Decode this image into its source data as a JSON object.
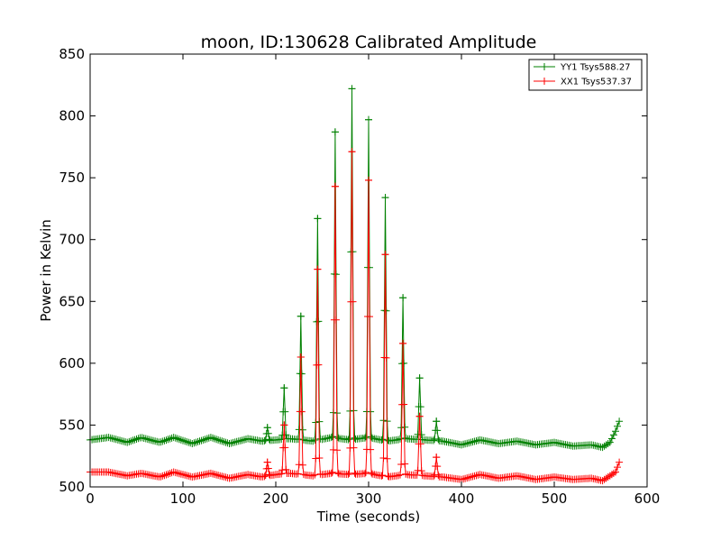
{
  "chart_data": {
    "type": "line",
    "title": "moon, ID:130628 Calibrated Amplitude",
    "xlabel": "Time (seconds)",
    "ylabel": "Power in Kelvin",
    "xlim": [
      0,
      600
    ],
    "ylim": [
      500,
      850
    ],
    "xticks": [
      0,
      100,
      200,
      300,
      400,
      500,
      600
    ],
    "yticks": [
      500,
      550,
      600,
      650,
      700,
      750,
      800,
      850
    ],
    "grid": false,
    "legend_position": "top-right",
    "marker": "plus",
    "baseline_sample_step": 2,
    "series": [
      {
        "name": "YY1 Tsys588.27",
        "color": "#008000",
        "baseline": [
          [
            0,
            538
          ],
          [
            20,
            540
          ],
          [
            40,
            536
          ],
          [
            55,
            540
          ],
          [
            75,
            536
          ],
          [
            90,
            540
          ],
          [
            110,
            535
          ],
          [
            130,
            540
          ],
          [
            150,
            535
          ],
          [
            170,
            539
          ],
          [
            185,
            537
          ],
          [
            200,
            538
          ],
          [
            215,
            539
          ],
          [
            240,
            537
          ],
          [
            260,
            540
          ],
          [
            280,
            538
          ],
          [
            300,
            540
          ],
          [
            320,
            537
          ],
          [
            340,
            539
          ],
          [
            360,
            538
          ],
          [
            380,
            537
          ],
          [
            400,
            534
          ],
          [
            420,
            538
          ],
          [
            440,
            535
          ],
          [
            460,
            537
          ],
          [
            480,
            534
          ],
          [
            500,
            536
          ],
          [
            520,
            533
          ],
          [
            540,
            534
          ],
          [
            552,
            532
          ],
          [
            560,
            536
          ],
          [
            566,
            545
          ],
          [
            570,
            553
          ]
        ],
        "peaks": [
          [
            191,
            548
          ],
          [
            209,
            580
          ],
          [
            227,
            638
          ],
          [
            245,
            717
          ],
          [
            264,
            787
          ],
          [
            282,
            822
          ],
          [
            300,
            797
          ],
          [
            318,
            734
          ],
          [
            337,
            653
          ],
          [
            355,
            588
          ],
          [
            373,
            553
          ]
        ]
      },
      {
        "name": "XX1 Tsys537.37",
        "color": "#ff0000",
        "baseline": [
          [
            0,
            512
          ],
          [
            20,
            512
          ],
          [
            40,
            509
          ],
          [
            55,
            511
          ],
          [
            75,
            508
          ],
          [
            90,
            512
          ],
          [
            110,
            508
          ],
          [
            130,
            511
          ],
          [
            150,
            507
          ],
          [
            170,
            510
          ],
          [
            185,
            508
          ],
          [
            200,
            510
          ],
          [
            215,
            511
          ],
          [
            240,
            509
          ],
          [
            260,
            511
          ],
          [
            280,
            510
          ],
          [
            300,
            511
          ],
          [
            320,
            508
          ],
          [
            340,
            510
          ],
          [
            360,
            509
          ],
          [
            380,
            508
          ],
          [
            400,
            506
          ],
          [
            420,
            510
          ],
          [
            440,
            507
          ],
          [
            460,
            509
          ],
          [
            480,
            506
          ],
          [
            500,
            508
          ],
          [
            520,
            506
          ],
          [
            540,
            507
          ],
          [
            552,
            505
          ],
          [
            560,
            509
          ],
          [
            566,
            512
          ],
          [
            570,
            520
          ]
        ],
        "peaks": [
          [
            191,
            520
          ],
          [
            209,
            550
          ],
          [
            227,
            605
          ],
          [
            245,
            676
          ],
          [
            264,
            743
          ],
          [
            282,
            771
          ],
          [
            300,
            748
          ],
          [
            318,
            688
          ],
          [
            337,
            616
          ],
          [
            355,
            557
          ],
          [
            373,
            524
          ]
        ]
      }
    ]
  }
}
